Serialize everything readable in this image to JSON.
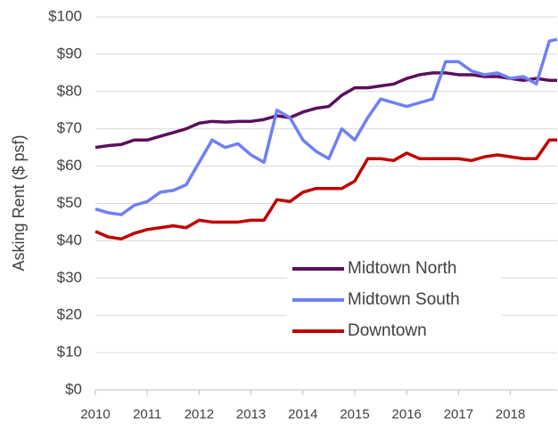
{
  "chart_data": {
    "type": "line",
    "y_label": "Asking Rent ($ psf)",
    "x": [
      2010,
      2010.25,
      2010.5,
      2010.75,
      2011,
      2011.25,
      2011.5,
      2011.75,
      2012,
      2012.25,
      2012.5,
      2012.75,
      2013,
      2013.25,
      2013.5,
      2013.75,
      2014,
      2014.25,
      2014.5,
      2014.75,
      2015,
      2015.25,
      2015.5,
      2015.75,
      2016,
      2016.25,
      2016.5,
      2016.75,
      2017,
      2017.25,
      2017.5,
      2017.75,
      2018,
      2018.25,
      2018.5,
      2018.75,
      2018.9
    ],
    "series": [
      {
        "name": "Midtown North",
        "color": "#5c0e5c",
        "values": [
          65,
          65.5,
          65.8,
          67,
          67,
          68,
          69,
          70,
          71.5,
          72,
          71.8,
          72,
          72,
          72.5,
          73.5,
          73,
          74.5,
          75.5,
          76,
          79,
          81,
          81,
          81.5,
          82,
          83.5,
          84.5,
          85,
          85,
          84.5,
          84.5,
          84,
          84,
          83.5,
          83,
          83.5,
          83,
          83
        ]
      },
      {
        "name": "Midtown South",
        "color": "#6f7ff5",
        "values": [
          48.5,
          47.5,
          47,
          49.5,
          50.5,
          53,
          53.5,
          55,
          61,
          67,
          65,
          66,
          63,
          61,
          75,
          73,
          67,
          64,
          62,
          70,
          67,
          73,
          78,
          77,
          76,
          77,
          78,
          88,
          88,
          85.5,
          84.5,
          85,
          83.5,
          84,
          82,
          93.5,
          94
        ]
      },
      {
        "name": "Downtown",
        "color": "#c00000",
        "values": [
          42.5,
          41,
          40.5,
          42,
          43,
          43.5,
          44,
          43.5,
          45.5,
          45,
          45,
          45,
          45.5,
          45.5,
          51,
          50.5,
          53,
          54,
          54,
          54,
          56,
          62,
          62,
          61.5,
          63.5,
          62,
          62,
          62,
          62,
          61.5,
          62.5,
          63,
          62.5,
          62,
          62,
          67,
          67
        ]
      }
    ],
    "xlim": [
      2010,
      2018.9
    ],
    "xticks": [
      2010,
      2011,
      2012,
      2013,
      2014,
      2015,
      2016,
      2017,
      2018
    ],
    "ylim": [
      0,
      100
    ],
    "yticks": [
      {
        "value": 0,
        "label": "$0"
      },
      {
        "value": 10,
        "label": "$10"
      },
      {
        "value": 20,
        "label": "$20"
      },
      {
        "value": 30,
        "label": "$30"
      },
      {
        "value": 40,
        "label": "$40"
      },
      {
        "value": 50,
        "label": "$50"
      },
      {
        "value": 60,
        "label": "$60"
      },
      {
        "value": 70,
        "label": "$70"
      },
      {
        "value": 80,
        "label": "$80"
      },
      {
        "value": 90,
        "label": "$90"
      },
      {
        "value": 100,
        "label": "$100"
      }
    ],
    "grid": true
  }
}
